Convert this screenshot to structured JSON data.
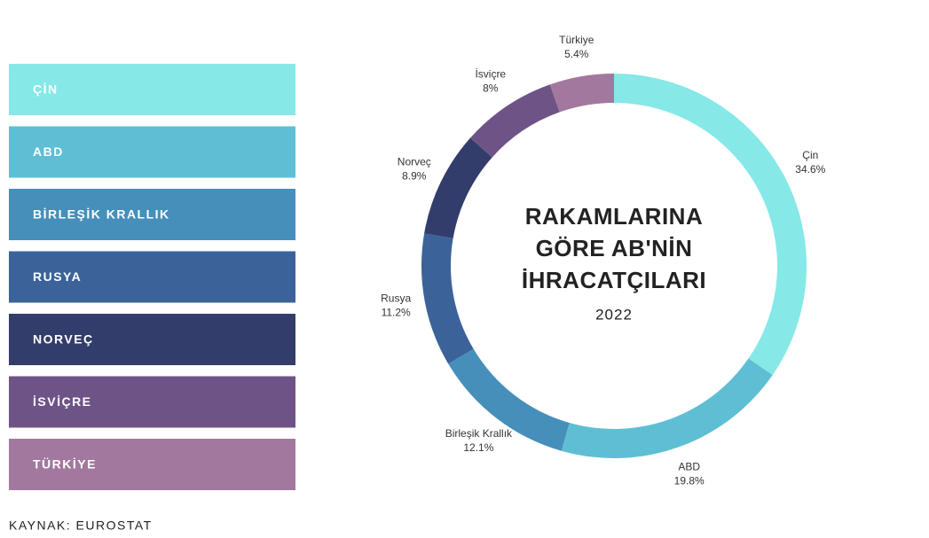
{
  "chart_data": {
    "type": "pie",
    "title_lines": [
      "RAKAMLARINA",
      "GÖRE AB'NİN",
      "İHRACATÇILARI"
    ],
    "subtitle": "2022",
    "categories": [
      "Çin",
      "ABD",
      "Birleşik Krallık",
      "Rusya",
      "Norveç",
      "İsviçre",
      "Türkiye"
    ],
    "legend_labels": [
      "ÇİN",
      "ABD",
      "BİRLEŞİK KRALLIK",
      "RUSYA",
      "NORVEÇ",
      "İSVİÇRE",
      "TÜRKİYE"
    ],
    "values": [
      34.6,
      19.8,
      12.1,
      11.2,
      8.9,
      8,
      5.4
    ],
    "value_labels": [
      "34.6%",
      "19.8%",
      "12.1%",
      "11.2%",
      "8.9%",
      "8%",
      "5.4%"
    ],
    "colors": [
      "#87e8e8",
      "#5ebfd4",
      "#468fbb",
      "#3b6399",
      "#333d6b",
      "#6e5486",
      "#a3789f"
    ],
    "source": "KAYNAK: EUROSTAT"
  }
}
